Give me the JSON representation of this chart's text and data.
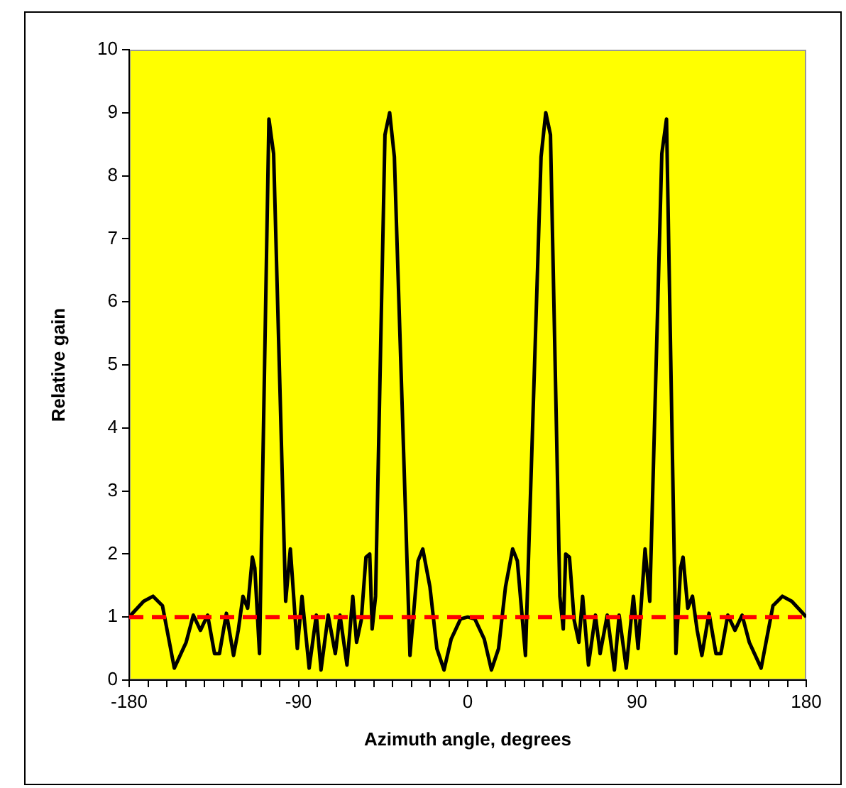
{
  "chart_data": {
    "type": "line",
    "xlabel": "Azimuth angle, degrees",
    "ylabel": "Relative gain",
    "x": [
      -180,
      -177.9,
      -172.3,
      -167.3,
      -162.3,
      -156,
      -149.7,
      -145.9,
      -142.1,
      -138.3,
      -134.6,
      -132,
      -128.3,
      -124.5,
      -122,
      -119.5,
      -117,
      -114.5,
      -113.2,
      -110.7,
      -105.7,
      -103.2,
      -96.8,
      -94.3,
      -90.6,
      -88.1,
      -84.3,
      -80.5,
      -78,
      -74.2,
      -70.4,
      -67.9,
      -64.2,
      -61.1,
      -59.1,
      -56.6,
      -54.1,
      -52.1,
      -50.8,
      -49,
      -44,
      -41.5,
      -39,
      -30.7,
      -26.4,
      -23.9,
      -20.1,
      -16.4,
      -12.6,
      -8.8,
      -3.8,
      0,
      3.8,
      8.8,
      12.6,
      16.4,
      20.1,
      23.9,
      26.4,
      30.7,
      39,
      41.5,
      44,
      49,
      50.8,
      52.1,
      54.1,
      56.6,
      59.1,
      61.1,
      64.2,
      67.9,
      70.4,
      74.2,
      78,
      80.5,
      84.3,
      88.1,
      90.6,
      94.3,
      96.8,
      103.2,
      105.7,
      110.7,
      113.2,
      114.5,
      117,
      119.5,
      122,
      124.5,
      128.3,
      132,
      134.6,
      138.3,
      142.1,
      145.9,
      149.7,
      156,
      162.3,
      167.3,
      172.3,
      177.9,
      180
    ],
    "series": [
      {
        "color": "#000000",
        "values": [
          1.0,
          1.07,
          1.25,
          1.33,
          1.18,
          0.19,
          0.6,
          1.03,
          0.79,
          1.03,
          0.42,
          0.42,
          1.06,
          0.39,
          0.79,
          1.33,
          1.14,
          1.95,
          1.78,
          0.42,
          8.9,
          8.35,
          1.25,
          2.08,
          0.5,
          1.33,
          0.19,
          1.03,
          0.16,
          1.03,
          0.42,
          1.03,
          0.24,
          1.33,
          0.6,
          0.95,
          1.95,
          2.0,
          0.81,
          1.33,
          8.65,
          9.0,
          8.3,
          0.39,
          1.89,
          2.08,
          1.48,
          0.5,
          0.16,
          0.65,
          0.97,
          1.0,
          0.97,
          0.65,
          0.16,
          0.5,
          1.48,
          2.08,
          1.89,
          0.39,
          8.3,
          9.0,
          8.65,
          1.33,
          0.81,
          2.0,
          1.95,
          0.95,
          0.6,
          1.33,
          0.24,
          1.03,
          0.42,
          1.03,
          0.16,
          1.03,
          0.19,
          1.33,
          0.5,
          2.08,
          1.25,
          8.35,
          8.9,
          0.42,
          1.78,
          1.95,
          1.14,
          1.33,
          0.79,
          0.39,
          1.06,
          0.42,
          0.42,
          1.03,
          0.79,
          1.03,
          0.6,
          0.19,
          1.18,
          1.33,
          1.25,
          1.07,
          1.0
        ]
      }
    ],
    "xlim": [
      -180,
      180
    ],
    "ylim": [
      0,
      10
    ],
    "xticks": [
      -180,
      {
        "value": -170,
        "label": null
      },
      {
        "value": -160,
        "label": null
      },
      {
        "value": -150,
        "label": null
      },
      {
        "value": -140,
        "label": null
      },
      {
        "value": -130,
        "label": null
      },
      {
        "value": -120,
        "label": null
      },
      {
        "value": -110,
        "label": null
      },
      {
        "value": -100,
        "label": null
      },
      -90,
      {
        "value": -80,
        "label": null
      },
      {
        "value": -70,
        "label": null
      },
      {
        "value": -60,
        "label": null
      },
      {
        "value": -50,
        "label": null
      },
      {
        "value": -40,
        "label": null
      },
      {
        "value": -30,
        "label": null
      },
      {
        "value": -20,
        "label": null
      },
      {
        "value": -10,
        "label": null
      },
      0,
      {
        "value": 10,
        "label": null
      },
      {
        "value": 20,
        "label": null
      },
      {
        "value": 30,
        "label": null
      },
      {
        "value": 40,
        "label": null
      },
      {
        "value": 50,
        "label": null
      },
      {
        "value": 60,
        "label": null
      },
      {
        "value": 70,
        "label": null
      },
      {
        "value": 80,
        "label": null
      },
      90,
      {
        "value": 100,
        "label": null
      },
      {
        "value": 110,
        "label": null
      },
      {
        "value": 120,
        "label": null
      },
      {
        "value": 130,
        "label": null
      },
      {
        "value": 140,
        "label": null
      },
      {
        "value": 150,
        "label": null
      },
      {
        "value": 160,
        "label": null
      },
      {
        "value": 170,
        "label": null
      },
      180
    ],
    "yticks": [
      0,
      1,
      2,
      3,
      4,
      5,
      6,
      7,
      8,
      9,
      10
    ],
    "ref_lines": [
      {
        "axis": "y",
        "value": 1,
        "color": "#ff0000",
        "line_style": "dashed"
      }
    ],
    "grid": false,
    "legend": false,
    "marker": "none",
    "line_style": "solid"
  }
}
